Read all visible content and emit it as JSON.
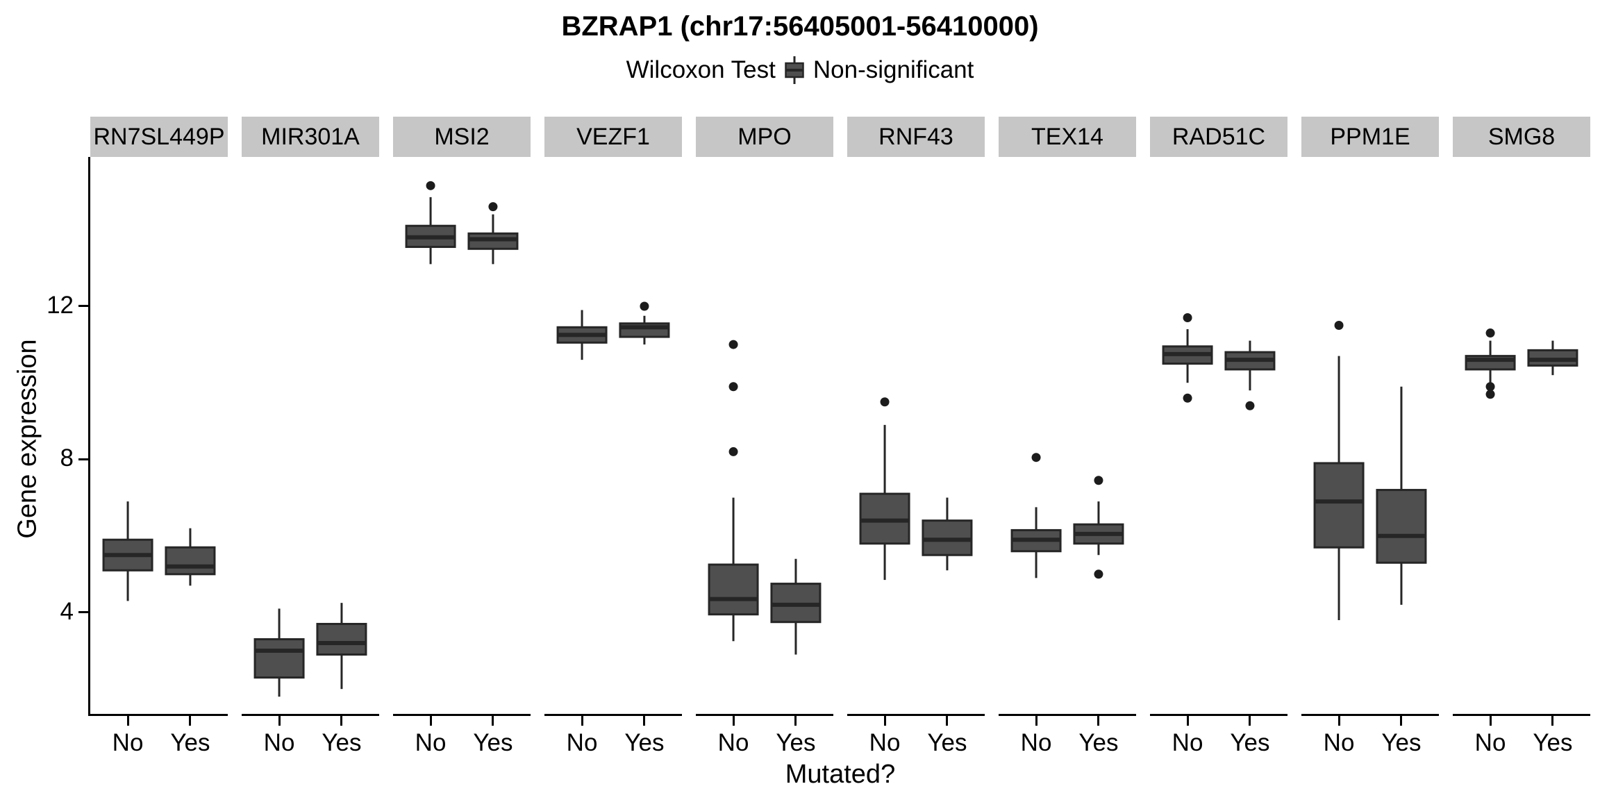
{
  "page": {
    "title": "BZRAP1 (chr17:56405001-56410000)"
  },
  "legend": {
    "title": "Wilcoxon Test",
    "items": [
      {
        "label": "Non-significant"
      }
    ]
  },
  "axes": {
    "y_title": "Gene expression",
    "x_title": "Mutated?"
  },
  "chart_data": {
    "type": "boxplot",
    "title": "BZRAP1 (chr17:56405001-56410000)",
    "legend_title": "Wilcoxon Test",
    "legend_items": [
      "Non-significant"
    ],
    "xlabel": "Mutated?",
    "ylabel": "Gene expression",
    "x_categories": [
      "No",
      "Yes"
    ],
    "yticks": [
      4,
      8,
      12
    ],
    "ylim": [
      1.35,
      15.9
    ],
    "facet_layout": "single-row",
    "facets": [
      {
        "gene": "RN7SL449P",
        "boxes": [
          {
            "group": "No",
            "low": 4.3,
            "q1": 5.1,
            "median": 5.5,
            "q3": 5.9,
            "high": 6.9,
            "outliers": []
          },
          {
            "group": "Yes",
            "low": 4.7,
            "q1": 5.0,
            "median": 5.2,
            "q3": 5.7,
            "high": 6.2,
            "outliers": []
          }
        ]
      },
      {
        "gene": "MIR301A",
        "boxes": [
          {
            "group": "No",
            "low": 1.8,
            "q1": 2.3,
            "median": 3.0,
            "q3": 3.3,
            "high": 4.1,
            "outliers": []
          },
          {
            "group": "Yes",
            "low": 2.0,
            "q1": 2.9,
            "median": 3.2,
            "q3": 3.7,
            "high": 4.25,
            "outliers": []
          }
        ]
      },
      {
        "gene": "MSI2",
        "boxes": [
          {
            "group": "No",
            "low": 13.1,
            "q1": 13.55,
            "median": 13.8,
            "q3": 14.1,
            "high": 14.85,
            "outliers": [
              15.15
            ]
          },
          {
            "group": "Yes",
            "low": 13.1,
            "q1": 13.5,
            "median": 13.75,
            "q3": 13.9,
            "high": 14.4,
            "outliers": [
              14.6
            ]
          }
        ]
      },
      {
        "gene": "VEZF1",
        "boxes": [
          {
            "group": "No",
            "low": 10.6,
            "q1": 11.05,
            "median": 11.25,
            "q3": 11.45,
            "high": 11.9,
            "outliers": []
          },
          {
            "group": "Yes",
            "low": 11.0,
            "q1": 11.2,
            "median": 11.45,
            "q3": 11.55,
            "high": 11.75,
            "outliers": [
              12.0
            ]
          }
        ]
      },
      {
        "gene": "MPO",
        "boxes": [
          {
            "group": "No",
            "low": 3.25,
            "q1": 3.95,
            "median": 4.35,
            "q3": 5.25,
            "high": 7.0,
            "outliers": [
              8.2,
              9.9,
              11.0
            ]
          },
          {
            "group": "Yes",
            "low": 2.9,
            "q1": 3.75,
            "median": 4.2,
            "q3": 4.75,
            "high": 5.4,
            "outliers": []
          }
        ]
      },
      {
        "gene": "RNF43",
        "boxes": [
          {
            "group": "No",
            "low": 4.85,
            "q1": 5.8,
            "median": 6.4,
            "q3": 7.1,
            "high": 8.9,
            "outliers": [
              9.5
            ]
          },
          {
            "group": "Yes",
            "low": 5.1,
            "q1": 5.5,
            "median": 5.9,
            "q3": 6.4,
            "high": 7.0,
            "outliers": []
          }
        ]
      },
      {
        "gene": "TEX14",
        "boxes": [
          {
            "group": "No",
            "low": 4.9,
            "q1": 5.6,
            "median": 5.9,
            "q3": 6.15,
            "high": 6.75,
            "outliers": [
              8.05
            ]
          },
          {
            "group": "Yes",
            "low": 5.5,
            "q1": 5.8,
            "median": 6.05,
            "q3": 6.3,
            "high": 6.9,
            "outliers": [
              7.45,
              5.0
            ]
          }
        ]
      },
      {
        "gene": "RAD51C",
        "boxes": [
          {
            "group": "No",
            "low": 10.0,
            "q1": 10.5,
            "median": 10.75,
            "q3": 10.95,
            "high": 11.4,
            "outliers": [
              11.7,
              9.6
            ]
          },
          {
            "group": "Yes",
            "low": 9.8,
            "q1": 10.35,
            "median": 10.6,
            "q3": 10.8,
            "high": 11.1,
            "outliers": [
              9.4
            ]
          }
        ]
      },
      {
        "gene": "PPM1E",
        "boxes": [
          {
            "group": "No",
            "low": 3.8,
            "q1": 5.7,
            "median": 6.9,
            "q3": 7.9,
            "high": 10.7,
            "outliers": [
              11.5
            ]
          },
          {
            "group": "Yes",
            "low": 4.2,
            "q1": 5.3,
            "median": 6.0,
            "q3": 7.2,
            "high": 9.9,
            "outliers": []
          }
        ]
      },
      {
        "gene": "SMG8",
        "boxes": [
          {
            "group": "No",
            "low": 10.0,
            "q1": 10.35,
            "median": 10.6,
            "q3": 10.7,
            "high": 11.1,
            "outliers": [
              11.3,
              9.9,
              9.7
            ]
          },
          {
            "group": "Yes",
            "low": 10.2,
            "q1": 10.45,
            "median": 10.6,
            "q3": 10.85,
            "high": 11.1,
            "outliers": []
          }
        ]
      }
    ],
    "colors": {
      "box_fill": "#4f4f4f",
      "box_stroke": "#262626",
      "strip_bg": "#c6c6c6",
      "axis": "#000000"
    }
  }
}
